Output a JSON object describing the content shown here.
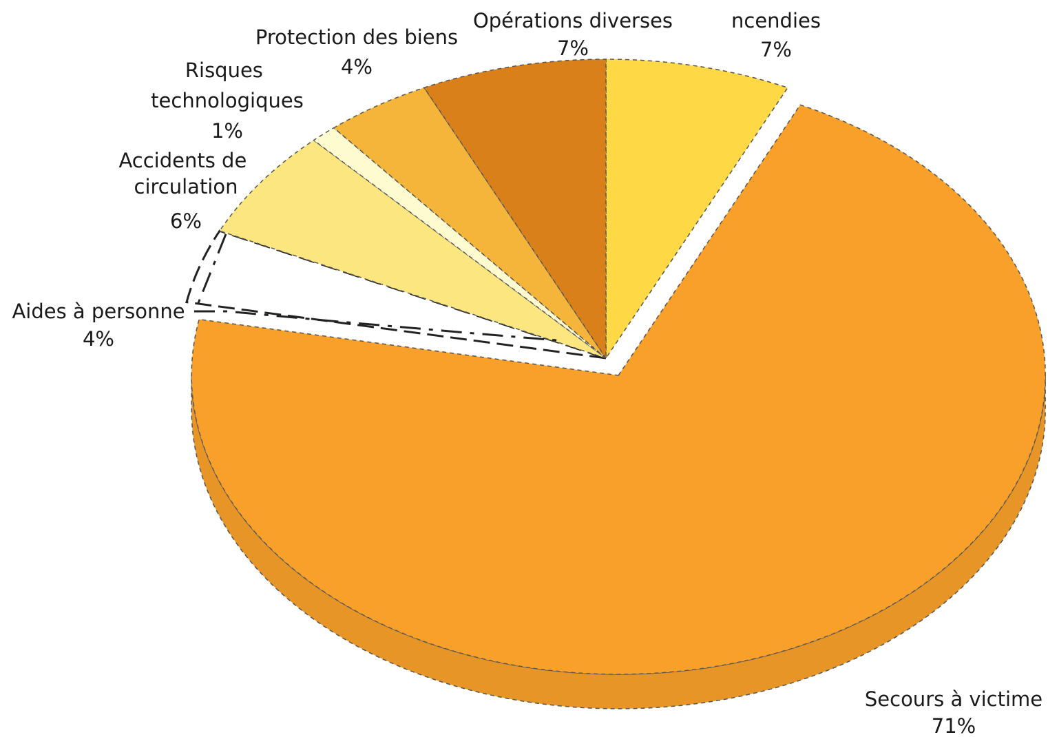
{
  "chart_data": {
    "type": "pie",
    "title": "",
    "series": [
      {
        "values": [
          7,
          71,
          4,
          6,
          1,
          4,
          7
        ],
        "labels": [
          "ncendies",
          "Secours à victime",
          "Aides à personne",
          "Accidents de circulation",
          "Risques technologiques",
          "Protection des biens",
          "Opérations diverses"
        ],
        "value_labels": [
          "7%",
          "71%",
          "4%",
          "6%",
          "1%",
          "4%",
          "7%"
        ],
        "colors": [
          "#FFD845",
          "#F8A02A",
          "#FFFFFF",
          "#FCE680",
          "#FFFBD0",
          "#F5B53A",
          "#D9801A"
        ]
      }
    ],
    "legend": "none"
  }
}
